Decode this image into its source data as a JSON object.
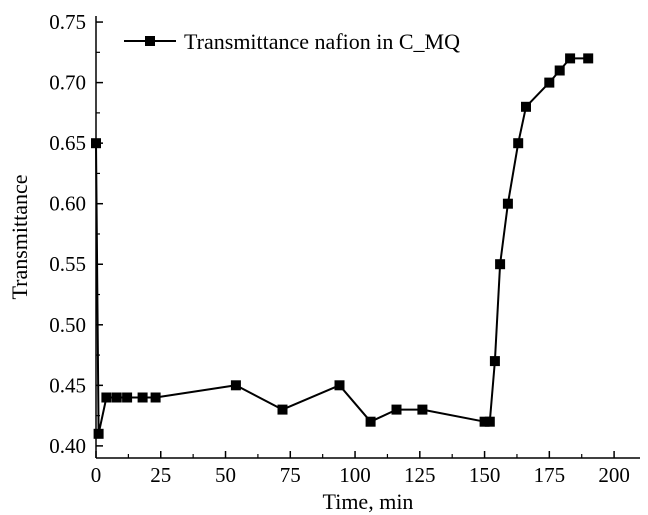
{
  "chart_data": {
    "type": "line",
    "title": "",
    "xlabel": "Time, min",
    "ylabel": "Transmittance",
    "xlim": [
      0,
      210
    ],
    "ylim": [
      0.39,
      0.755
    ],
    "xticks": [
      0,
      25,
      50,
      75,
      100,
      125,
      150,
      175,
      200
    ],
    "yticks": [
      0.4,
      0.45,
      0.5,
      0.55,
      0.6,
      0.65,
      0.7,
      0.75
    ],
    "xtick_labels": [
      "0",
      "25",
      "50",
      "75",
      "100",
      "125",
      "150",
      "175",
      "200"
    ],
    "ytick_labels": [
      "0.40",
      "0.45",
      "0.50",
      "0.55",
      "0.60",
      "0.65",
      "0.70",
      "0.75"
    ],
    "grid": false,
    "legend_position": "top-left",
    "marker": "square",
    "color": "#000000",
    "series": [
      {
        "name": "Transmittance nafion in C_MQ",
        "x": [
          0,
          1,
          4,
          8,
          12,
          18,
          23,
          54,
          72,
          94,
          106,
          116,
          126,
          150,
          152,
          154,
          156,
          159,
          163,
          166,
          175,
          179,
          183,
          190
        ],
        "y": [
          0.65,
          0.41,
          0.44,
          0.44,
          0.44,
          0.44,
          0.44,
          0.45,
          0.43,
          0.45,
          0.42,
          0.43,
          0.43,
          0.42,
          0.42,
          0.47,
          0.55,
          0.6,
          0.65,
          0.68,
          0.7,
          0.71,
          0.72,
          0.72
        ]
      }
    ]
  }
}
